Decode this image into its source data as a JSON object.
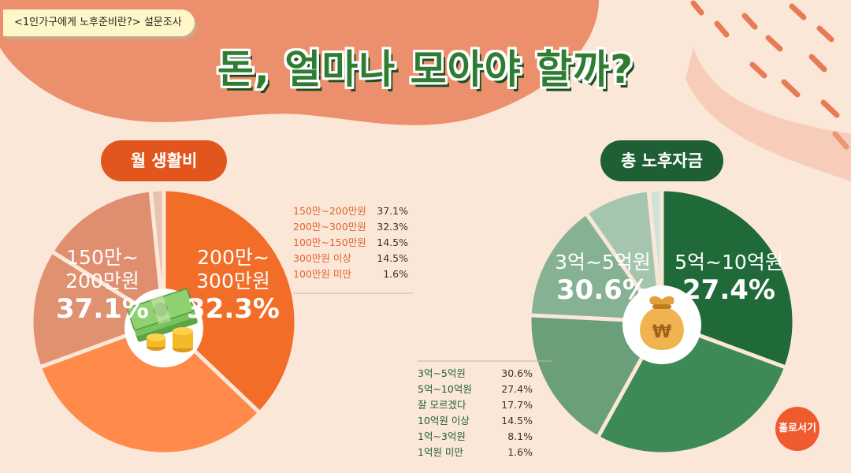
{
  "tag": "<1인가구에게 노후준비란?> 설문조사",
  "title": "돈, 얼마나 모아야 할까?",
  "logo": "홀로서기",
  "colors": {
    "left": [
      "#f26d28",
      "#ff8a4a",
      "#e09170",
      "#df8f70",
      "#e8c2b0"
    ],
    "right": [
      "#1f6a38",
      "#3e8a56",
      "#6b9f7a",
      "#86b293",
      "#a6c5af",
      "#cfe4d8"
    ]
  },
  "chart_data": [
    {
      "type": "pie",
      "title": "월 생활비",
      "categories": [
        "150만~200만원",
        "200만~300만원",
        "100만~150만원",
        "300만원 이상",
        "100만원 미만"
      ],
      "values": [
        37.1,
        32.3,
        14.5,
        14.5,
        1.6
      ],
      "value_labels": [
        "37.1%",
        "32.3%",
        "14.5%",
        "14.5%",
        "1.6%"
      ],
      "slice_labels": [
        {
          "cat1": "150만~",
          "cat2": "200만원",
          "pct": "37.1%"
        },
        {
          "cat1": "200만~",
          "cat2": "300만원",
          "pct": "32.3%"
        }
      ],
      "icon": "money-stack-coins-icon"
    },
    {
      "type": "pie",
      "title": "총 노후자금",
      "categories": [
        "3억~5억원",
        "5억~10억원",
        "잘 모르겠다",
        "10억원 이상",
        "1억~3억원",
        "1억원 미만"
      ],
      "values": [
        30.6,
        27.4,
        17.7,
        14.5,
        8.1,
        1.6
      ],
      "value_labels": [
        "30.6%",
        "27.4%",
        "17.7%",
        "14.5%",
        "8.1%",
        "1.6%"
      ],
      "slice_labels": [
        {
          "cat1": "3억~5억원",
          "pct": "30.6%"
        },
        {
          "cat1": "5억~10억원",
          "pct": "27.4%"
        }
      ],
      "icon": "money-bag-icon"
    }
  ]
}
